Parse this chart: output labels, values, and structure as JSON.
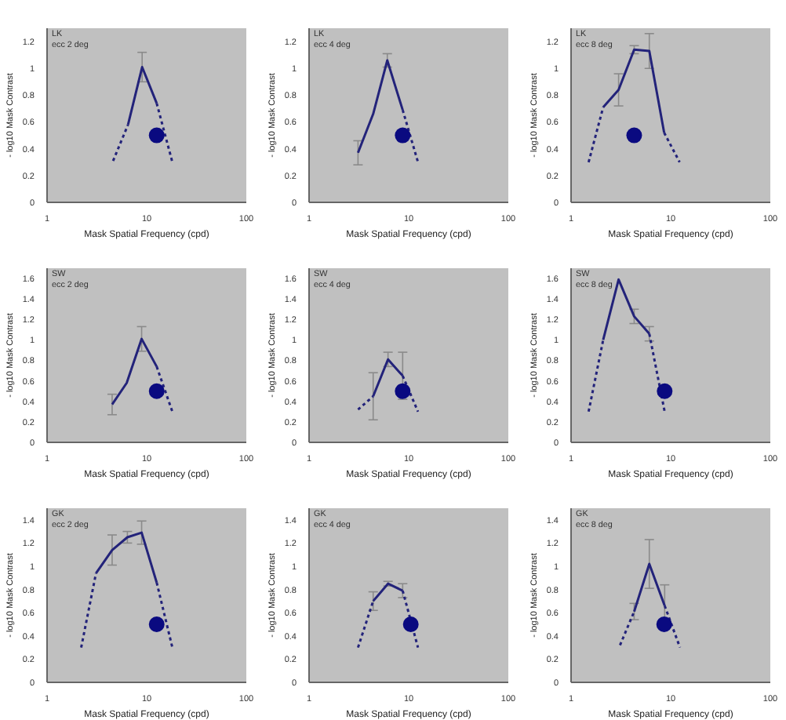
{
  "chart_data": [
    {
      "type": "line",
      "title": "LK",
      "subtitle": "ecc 2 deg",
      "xlabel": "Mask Spatial Frequency (cpd)",
      "ylabel": "- log10 Mask Contrast",
      "log": "x",
      "xlim": [
        1,
        100
      ],
      "xticks": [
        1,
        10,
        100
      ],
      "ylim": [
        0,
        1.3
      ],
      "yticks": [
        0,
        0.2,
        0.4,
        0.6,
        0.8,
        1,
        1.2
      ],
      "series": [
        {
          "type": "line",
          "color": "#23237a",
          "x": [
            6.5,
            9.0,
            12.6
          ],
          "values": [
            0.58,
            1.01,
            0.74
          ],
          "errors": [
            null,
            0.11,
            null
          ]
        },
        {
          "type": "line",
          "line_style": "dotted",
          "color": "#23237a",
          "x": [
            4.6,
            6.5,
            9.0,
            12.6,
            18.1
          ],
          "values": [
            0.31,
            0.58,
            null,
            0.74,
            0.3
          ]
        },
        {
          "type": "scatter",
          "marker": "circle",
          "color": "#0a0a80",
          "x": [
            12.6
          ],
          "values": [
            0.5
          ]
        }
      ]
    },
    {
      "type": "line",
      "title": "LK",
      "subtitle": "ecc 4 deg",
      "xlabel": "Mask Spatial Frequency (cpd)",
      "ylabel": "- log10 Mask Contrast",
      "log": "x",
      "xlim": [
        1,
        100
      ],
      "xticks": [
        1,
        10,
        100
      ],
      "ylim": [
        0,
        1.3
      ],
      "yticks": [
        0,
        0.2,
        0.4,
        0.6,
        0.8,
        1,
        1.2
      ],
      "series": [
        {
          "type": "line",
          "color": "#23237a",
          "x": [
            3.1,
            4.4,
            6.1,
            8.7
          ],
          "values": [
            0.37,
            0.66,
            1.06,
            0.69
          ],
          "errors": [
            0.09,
            null,
            0.05,
            null
          ]
        },
        {
          "type": "line",
          "line_style": "dotted",
          "color": "#23237a",
          "x": [
            8.7,
            12.4
          ],
          "values": [
            0.69,
            0.3
          ]
        },
        {
          "type": "scatter",
          "marker": "circle",
          "color": "#0a0a80",
          "x": [
            8.7
          ],
          "values": [
            0.5
          ]
        }
      ]
    },
    {
      "type": "line",
      "title": "LK",
      "subtitle": "ecc 8 deg",
      "xlabel": "Mask Spatial Frequency (cpd)",
      "ylabel": "- log10 Mask Contrast",
      "log": "x",
      "xlim": [
        1,
        100
      ],
      "xticks": [
        1,
        10,
        100
      ],
      "ylim": [
        0,
        1.3
      ],
      "yticks": [
        0,
        0.2,
        0.4,
        0.6,
        0.8,
        1,
        1.2
      ],
      "series": [
        {
          "type": "line",
          "color": "#23237a",
          "x": [
            2.1,
            3.0,
            4.3,
            6.1,
            8.6
          ],
          "values": [
            0.71,
            0.84,
            1.14,
            1.13,
            0.52
          ],
          "errors": [
            null,
            0.12,
            0.03,
            0.13,
            null
          ]
        },
        {
          "type": "line",
          "line_style": "dotted",
          "color": "#23237a",
          "x": [
            1.5,
            2.1,
            3.0,
            8.6,
            12.3
          ],
          "values": [
            0.3,
            0.71,
            null,
            0.52,
            0.3
          ]
        },
        {
          "type": "scatter",
          "marker": "circle",
          "color": "#0a0a80",
          "x": [
            4.3
          ],
          "values": [
            0.5
          ]
        }
      ]
    },
    {
      "type": "line",
      "title": "SW",
      "subtitle": "ecc 2 deg",
      "xlabel": "Mask Spatial Frequency (cpd)",
      "ylabel": "- log10 Mask Contrast",
      "log": "x",
      "xlim": [
        1,
        100
      ],
      "xticks": [
        1,
        10,
        100
      ],
      "ylim": [
        0,
        1.7
      ],
      "yticks": [
        0,
        0.2,
        0.4,
        0.6,
        0.8,
        1,
        1.2,
        1.4,
        1.6
      ],
      "series": [
        {
          "type": "line",
          "color": "#23237a",
          "x": [
            4.5,
            6.3,
            8.9,
            12.6
          ],
          "values": [
            0.37,
            0.58,
            1.01,
            0.74
          ],
          "errors": [
            0.1,
            null,
            0.12,
            null
          ]
        },
        {
          "type": "line",
          "line_style": "dotted",
          "color": "#23237a",
          "x": [
            12.6,
            18.1
          ],
          "values": [
            0.74,
            0.3
          ]
        },
        {
          "type": "scatter",
          "marker": "circle",
          "color": "#0a0a80",
          "x": [
            12.6
          ],
          "values": [
            0.5
          ]
        }
      ]
    },
    {
      "type": "line",
      "title": "SW",
      "subtitle": "ecc 4 deg",
      "xlabel": "Mask Spatial Frequency (cpd)",
      "ylabel": "- log10 Mask Contrast",
      "log": "x",
      "xlim": [
        1,
        100
      ],
      "xticks": [
        1,
        10,
        100
      ],
      "ylim": [
        0,
        1.7
      ],
      "yticks": [
        0,
        0.2,
        0.4,
        0.6,
        0.8,
        1,
        1.2,
        1.4,
        1.6
      ],
      "series": [
        {
          "type": "line",
          "color": "#23237a",
          "x": [
            4.4,
            6.2,
            8.7
          ],
          "values": [
            0.45,
            0.81,
            0.65
          ],
          "errors": [
            0.23,
            0.07,
            0.23
          ]
        },
        {
          "type": "line",
          "line_style": "dotted",
          "color": "#23237a",
          "x": [
            3.1,
            4.4,
            6.2,
            8.7,
            12.4
          ],
          "values": [
            0.32,
            0.45,
            null,
            0.65,
            0.3
          ]
        },
        {
          "type": "scatter",
          "marker": "circle",
          "color": "#0a0a80",
          "x": [
            8.7
          ],
          "values": [
            0.5
          ]
        }
      ]
    },
    {
      "type": "line",
      "title": "SW",
      "subtitle": "ecc 8 deg",
      "xlabel": "Mask Spatial Frequency (cpd)",
      "ylabel": "- log10 Mask Contrast",
      "log": "x",
      "xlim": [
        1,
        100
      ],
      "xticks": [
        1,
        10,
        100
      ],
      "ylim": [
        0,
        1.7
      ],
      "yticks": [
        0,
        0.2,
        0.4,
        0.6,
        0.8,
        1,
        1.2,
        1.4,
        1.6
      ],
      "series": [
        {
          "type": "line",
          "color": "#23237a",
          "x": [
            2.1,
            3.0,
            4.3,
            6.1
          ],
          "values": [
            1.0,
            1.59,
            1.23,
            1.06
          ],
          "errors": [
            null,
            null,
            0.07,
            0.07
          ]
        },
        {
          "type": "line",
          "line_style": "dotted",
          "color": "#23237a",
          "x": [
            1.5,
            2.1,
            3.0,
            6.1,
            8.7
          ],
          "values": [
            0.3,
            1.0,
            null,
            1.06,
            0.3
          ]
        },
        {
          "type": "scatter",
          "marker": "circle",
          "color": "#0a0a80",
          "x": [
            8.7
          ],
          "values": [
            0.5
          ]
        }
      ]
    },
    {
      "type": "line",
      "title": "GK",
      "subtitle": "ecc 2 deg",
      "xlabel": "Mask Spatial Frequency (cpd)",
      "ylabel": "- log10 Mask Contrast",
      "log": "x",
      "xlim": [
        1,
        100
      ],
      "xticks": [
        1,
        10,
        100
      ],
      "ylim": [
        0,
        1.5
      ],
      "yticks": [
        0,
        0.2,
        0.4,
        0.6,
        0.8,
        1,
        1.2,
        1.4
      ],
      "series": [
        {
          "type": "line",
          "color": "#23237a",
          "x": [
            3.1,
            4.5,
            6.4,
            8.9,
            12.6
          ],
          "values": [
            0.94,
            1.14,
            1.25,
            1.29,
            0.86
          ],
          "errors": [
            null,
            0.13,
            0.05,
            0.1,
            null
          ]
        },
        {
          "type": "line",
          "line_style": "dotted",
          "color": "#23237a",
          "x": [
            2.2,
            3.1,
            4.5,
            12.6,
            18.1
          ],
          "values": [
            0.3,
            0.94,
            null,
            0.86,
            0.3
          ]
        },
        {
          "type": "scatter",
          "marker": "circle",
          "color": "#0a0a80",
          "x": [
            12.6
          ],
          "values": [
            0.5
          ]
        }
      ]
    },
    {
      "type": "line",
      "title": "GK",
      "subtitle": "ecc 4 deg",
      "xlabel": "Mask Spatial Frequency (cpd)",
      "ylabel": "- log10 Mask Contrast",
      "log": "x",
      "xlim": [
        1,
        100
      ],
      "xticks": [
        1,
        10,
        100
      ],
      "ylim": [
        0,
        1.5
      ],
      "yticks": [
        0,
        0.2,
        0.4,
        0.6,
        0.8,
        1,
        1.2,
        1.4
      ],
      "series": [
        {
          "type": "line",
          "color": "#23237a",
          "x": [
            4.4,
            6.2,
            8.7
          ],
          "values": [
            0.7,
            0.85,
            0.79
          ],
          "errors": [
            0.08,
            0.02,
            0.06
          ]
        },
        {
          "type": "line",
          "line_style": "dotted",
          "color": "#23237a",
          "x": [
            3.1,
            4.4,
            6.2,
            8.7,
            12.4
          ],
          "values": [
            0.3,
            0.7,
            null,
            0.79,
            0.3
          ]
        },
        {
          "type": "scatter",
          "marker": "circle",
          "color": "#0a0a80",
          "x": [
            10.5
          ],
          "values": [
            0.5
          ]
        }
      ]
    },
    {
      "type": "line",
      "title": "GK",
      "subtitle": "ecc 8 deg",
      "xlabel": "Mask Spatial Frequency (cpd)",
      "ylabel": "- log10 Mask Contrast",
      "log": "x",
      "xlim": [
        1,
        100
      ],
      "xticks": [
        1,
        10,
        100
      ],
      "ylim": [
        0,
        1.5
      ],
      "yticks": [
        0,
        0.2,
        0.4,
        0.6,
        0.8,
        1,
        1.2,
        1.4
      ],
      "series": [
        {
          "type": "line",
          "color": "#23237a",
          "x": [
            4.3,
            6.1,
            8.7
          ],
          "values": [
            0.61,
            1.02,
            0.66
          ],
          "errors": [
            0.07,
            0.21,
            0.18
          ]
        },
        {
          "type": "line",
          "line_style": "dotted",
          "color": "#23237a",
          "x": [
            3.1,
            4.3,
            6.1,
            8.7,
            12.4
          ],
          "values": [
            0.32,
            0.61,
            null,
            0.66,
            0.3
          ]
        },
        {
          "type": "scatter",
          "marker": "circle",
          "color": "#0a0a80",
          "x": [
            8.6
          ],
          "values": [
            0.5
          ]
        }
      ]
    }
  ]
}
